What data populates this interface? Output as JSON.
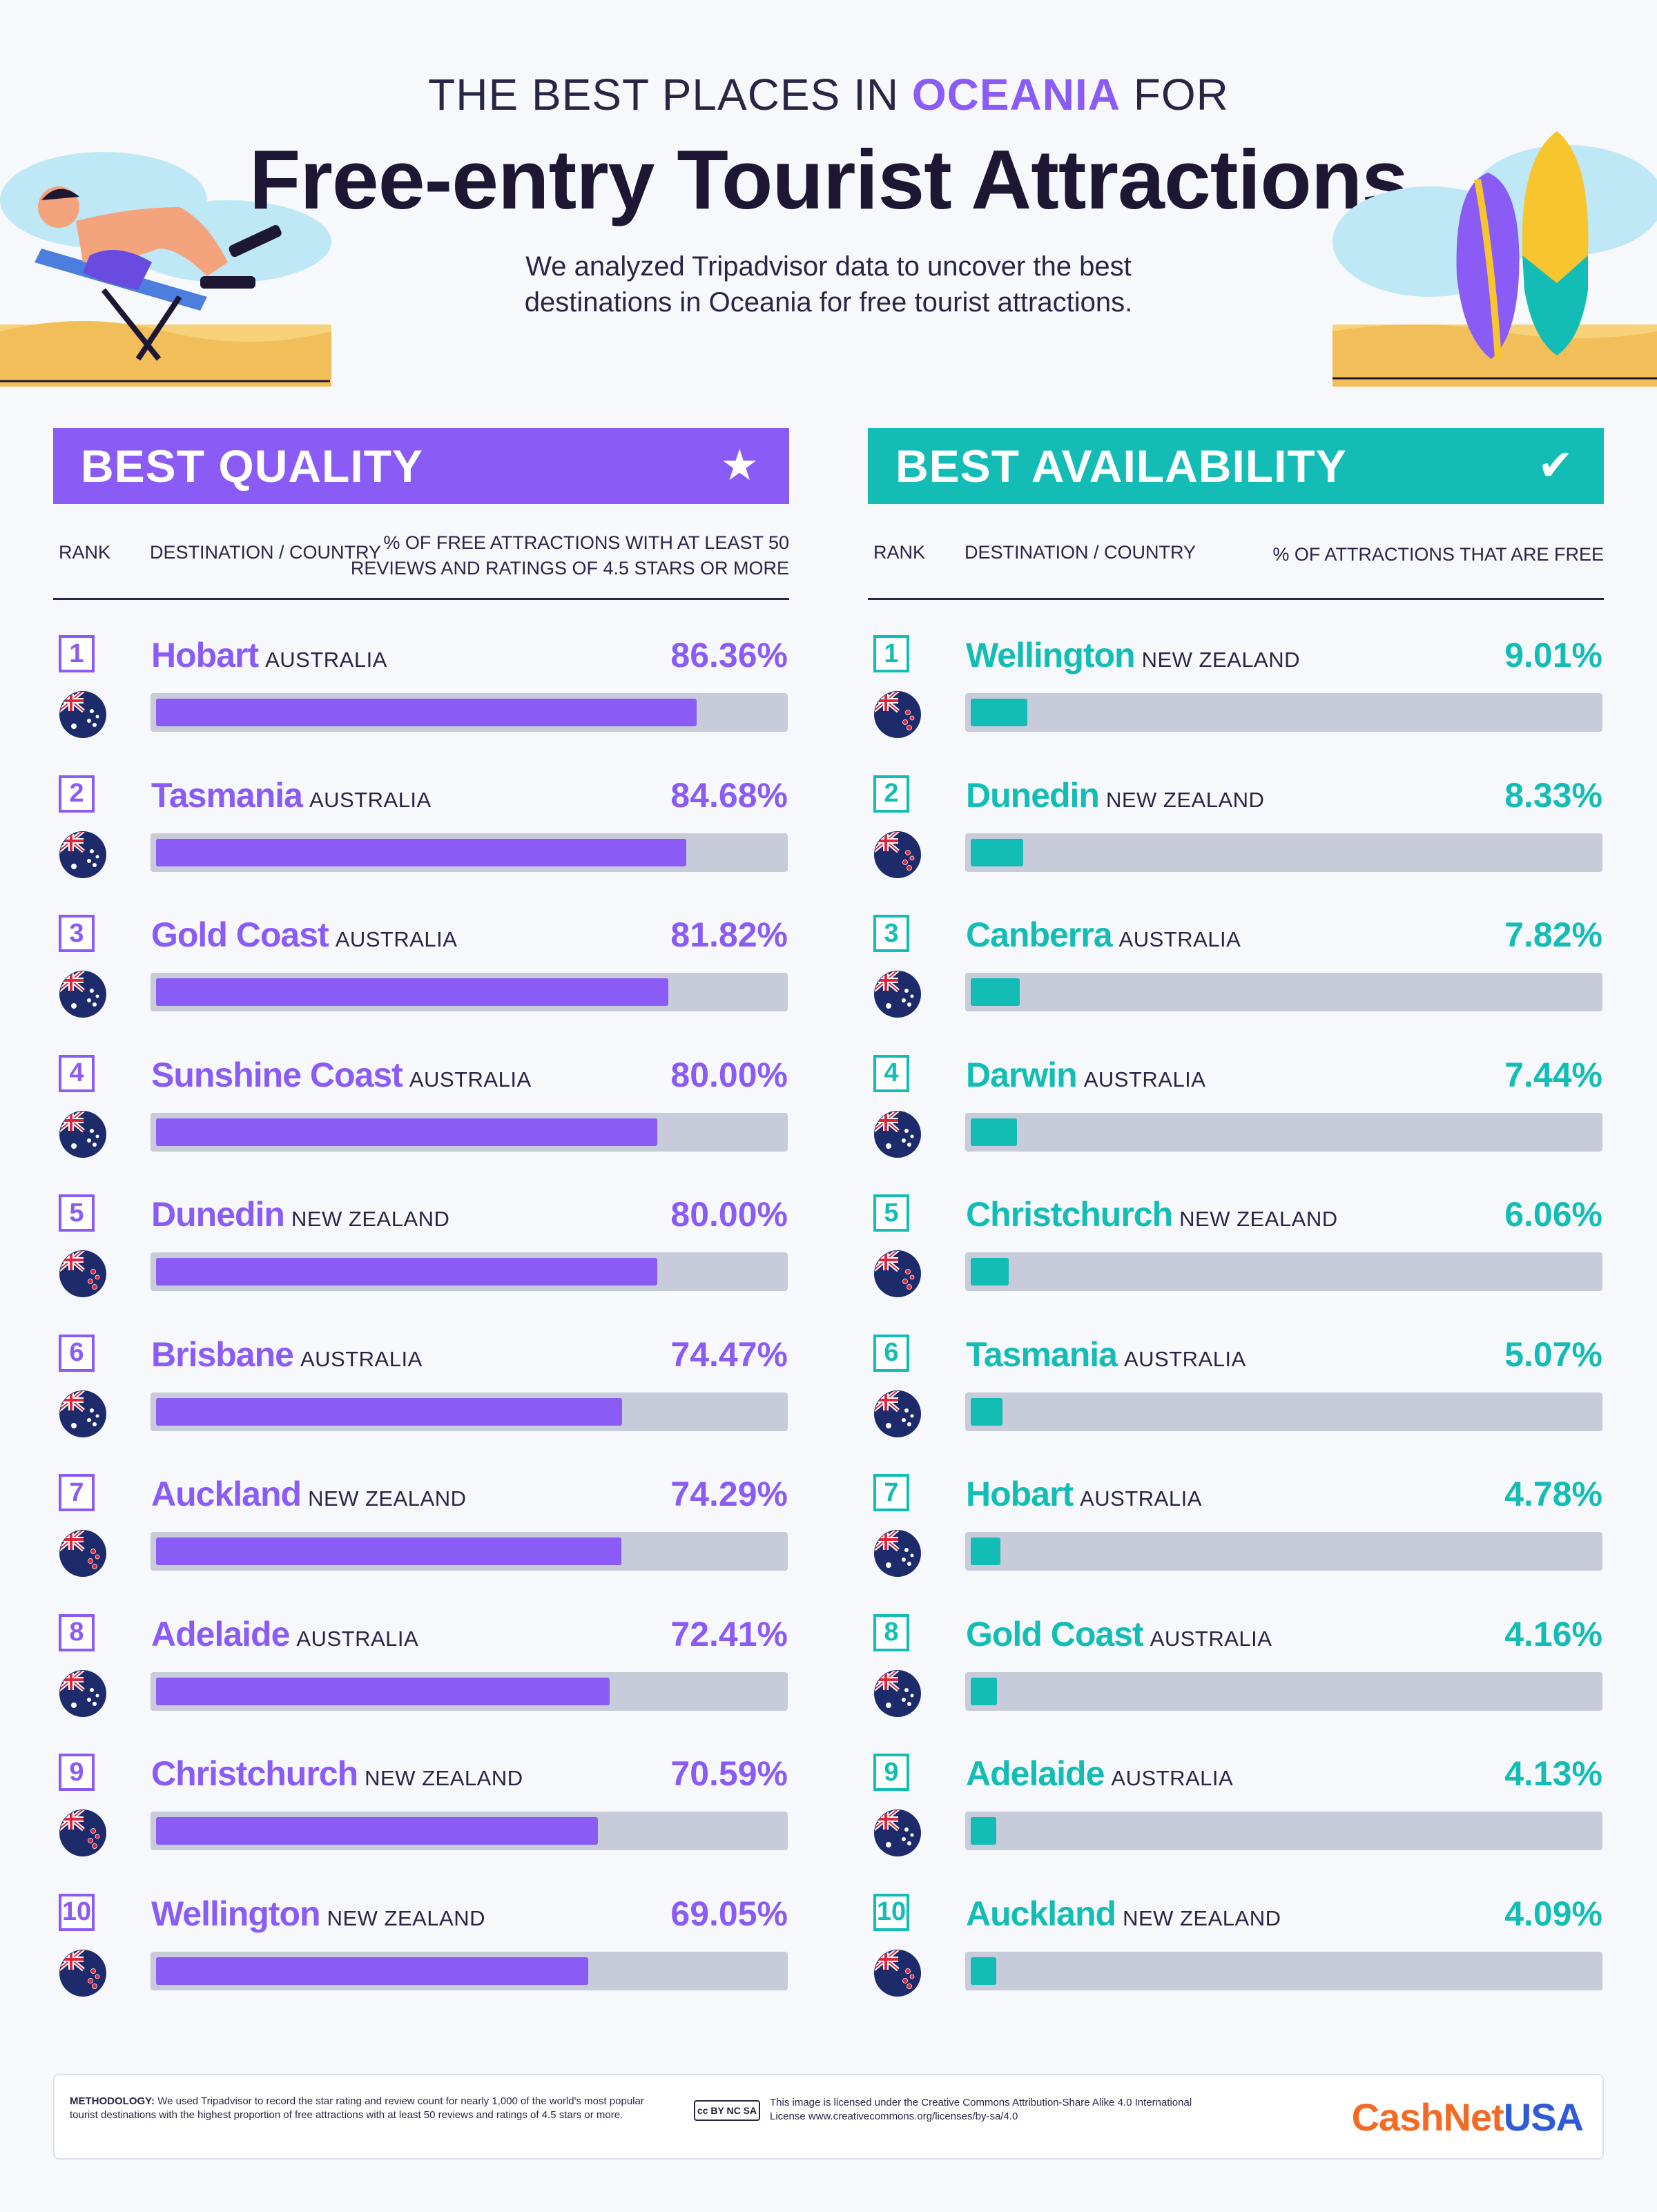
{
  "header": {
    "pre_title_a": "THE BEST PLACES IN ",
    "pre_title_accent": "OCEANIA",
    "pre_title_b": " FOR",
    "title": "Free-entry Tourist Attractions",
    "subtitle": "We analyzed Tripadvisor data to uncover the best destinations in Oceania for free tourist attractions."
  },
  "colors": {
    "quality": "#8a5cf5",
    "availability": "#13bdb5",
    "track": "#c8cbd9"
  },
  "quality": {
    "title": "BEST QUALITY",
    "icon": "star-icon",
    "col_rank": "RANK",
    "col_dest": "DESTINATION / COUNTRY",
    "col_metric_1": "% OF FREE ATTRACTIONS WITH AT LEAST 50",
    "col_metric_2": "REVIEWS AND RATINGS OF 4.5 STARS OR MORE"
  },
  "availability": {
    "title": "BEST AVAILABILITY",
    "icon": "checkmark-icon",
    "col_rank": "RANK",
    "col_dest": "DESTINATION / COUNTRY",
    "col_metric": "% OF ATTRACTIONS THAT ARE FREE"
  },
  "chart_data": [
    {
      "type": "bar",
      "orientation": "horizontal",
      "title": "BEST QUALITY",
      "value_label": "% OF FREE ATTRACTIONS WITH AT LEAST 50 REVIEWS AND RATINGS OF 4.5 STARS OR MORE",
      "xlim": [
        0,
        100
      ],
      "rows": [
        {
          "rank": "1",
          "city": "Hobart",
          "country": "AUSTRALIA",
          "flag": "australia-flag-icon",
          "value": 86.36,
          "label": "86.36%"
        },
        {
          "rank": "2",
          "city": "Tasmania",
          "country": "AUSTRALIA",
          "flag": "australia-flag-icon",
          "value": 84.68,
          "label": "84.68%"
        },
        {
          "rank": "3",
          "city": "Gold Coast",
          "country": "AUSTRALIA",
          "flag": "australia-flag-icon",
          "value": 81.82,
          "label": "81.82%"
        },
        {
          "rank": "4",
          "city": "Sunshine Coast",
          "country": "AUSTRALIA",
          "flag": "australia-flag-icon",
          "value": 80.0,
          "label": "80.00%"
        },
        {
          "rank": "5",
          "city": "Dunedin",
          "country": "NEW ZEALAND",
          "flag": "new-zealand-flag-icon",
          "value": 80.0,
          "label": "80.00%"
        },
        {
          "rank": "6",
          "city": "Brisbane",
          "country": "AUSTRALIA",
          "flag": "australia-flag-icon",
          "value": 74.47,
          "label": "74.47%"
        },
        {
          "rank": "7",
          "city": "Auckland",
          "country": "NEW ZEALAND",
          "flag": "new-zealand-flag-icon",
          "value": 74.29,
          "label": "74.29%"
        },
        {
          "rank": "8",
          "city": "Adelaide",
          "country": "AUSTRALIA",
          "flag": "australia-flag-icon",
          "value": 72.41,
          "label": "72.41%"
        },
        {
          "rank": "9",
          "city": "Christchurch",
          "country": "NEW ZEALAND",
          "flag": "new-zealand-flag-icon",
          "value": 70.59,
          "label": "70.59%"
        },
        {
          "rank": "10",
          "city": "Wellington",
          "country": "NEW ZEALAND",
          "flag": "new-zealand-flag-icon",
          "value": 69.05,
          "label": "69.05%"
        }
      ]
    },
    {
      "type": "bar",
      "orientation": "horizontal",
      "title": "BEST AVAILABILITY",
      "value_label": "% OF ATTRACTIONS THAT ARE FREE",
      "xlim": [
        0,
        100
      ],
      "rows": [
        {
          "rank": "1",
          "city": "Wellington",
          "country": "NEW ZEALAND",
          "flag": "new-zealand-flag-icon",
          "value": 9.01,
          "label": "9.01%"
        },
        {
          "rank": "2",
          "city": "Dunedin",
          "country": "NEW ZEALAND",
          "flag": "new-zealand-flag-icon",
          "value": 8.33,
          "label": "8.33%"
        },
        {
          "rank": "3",
          "city": "Canberra",
          "country": "AUSTRALIA",
          "flag": "australia-flag-icon",
          "value": 7.82,
          "label": "7.82%"
        },
        {
          "rank": "4",
          "city": "Darwin",
          "country": "AUSTRALIA",
          "flag": "australia-flag-icon",
          "value": 7.44,
          "label": "7.44%"
        },
        {
          "rank": "5",
          "city": "Christchurch",
          "country": "NEW ZEALAND",
          "flag": "new-zealand-flag-icon",
          "value": 6.06,
          "label": "6.06%"
        },
        {
          "rank": "6",
          "city": "Tasmania",
          "country": "AUSTRALIA",
          "flag": "australia-flag-icon",
          "value": 5.07,
          "label": "5.07%"
        },
        {
          "rank": "7",
          "city": "Hobart",
          "country": "AUSTRALIA",
          "flag": "australia-flag-icon",
          "value": 4.78,
          "label": "4.78%"
        },
        {
          "rank": "8",
          "city": "Gold Coast",
          "country": "AUSTRALIA",
          "flag": "australia-flag-icon",
          "value": 4.16,
          "label": "4.16%"
        },
        {
          "rank": "9",
          "city": "Adelaide",
          "country": "AUSTRALIA",
          "flag": "australia-flag-icon",
          "value": 4.13,
          "label": "4.13%"
        },
        {
          "rank": "10",
          "city": "Auckland",
          "country": "NEW ZEALAND",
          "flag": "new-zealand-flag-icon",
          "value": 4.09,
          "label": "4.09%"
        }
      ]
    }
  ],
  "footer": {
    "method_label": "METHODOLOGY:",
    "method_text": "We used Tripadvisor to record the star rating and review count for nearly 1,000 of the world's most popular tourist destinations with the highest proportion of free attractions with at least 50 reviews and ratings of 4.5 stars or more.",
    "cc_badge": "cc BY NC SA",
    "license": "This image is licensed under the Creative Commons Attribution-Share Alike 4.0 International License www.creativecommons.org/licenses/by-sa/4.0",
    "brand_a": "CashNet",
    "brand_b": "USA"
  }
}
